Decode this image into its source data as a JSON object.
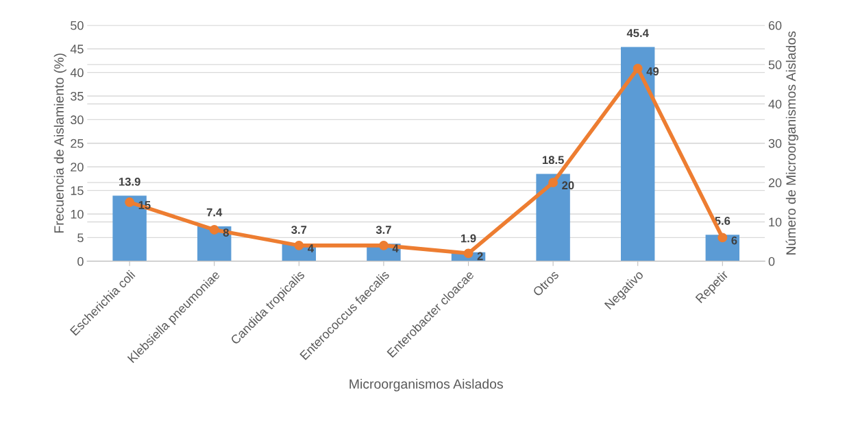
{
  "chart_data": {
    "type": "bar",
    "categories": [
      "Escherichia coli",
      "Klebsiella pneumoniae",
      "Candida tropicalis",
      "Enterococcus faecalis",
      "Enterobacter cloacae",
      "Otros",
      "Negativo",
      "Repetir"
    ],
    "xlabel": "Microorganismos Aislados",
    "ylabel": "Frecuencia de Aislamiento (%)",
    "y2label": "Número de Microorganismos Aislados",
    "series": [
      {
        "color": "#5b9bd5",
        "values": [
          13.9,
          7.4,
          3.7,
          3.7,
          1.9,
          18.5,
          45.4,
          5.6
        ]
      },
      {
        "type": "line",
        "axis": "y2",
        "color": "#ed7d31",
        "marker": "circle",
        "line_style": "solid",
        "values": [
          15,
          8,
          4,
          4,
          2,
          20,
          49,
          6
        ]
      }
    ],
    "ylim": [
      0,
      50
    ],
    "yticks": [
      0,
      5,
      10,
      15,
      20,
      25,
      30,
      35,
      40,
      45,
      50
    ],
    "y2lim": [
      0,
      60
    ],
    "y2ticks": [
      0,
      10,
      20,
      30,
      40,
      50,
      60
    ],
    "grid": "y",
    "legend": false,
    "data_labels": true
  }
}
